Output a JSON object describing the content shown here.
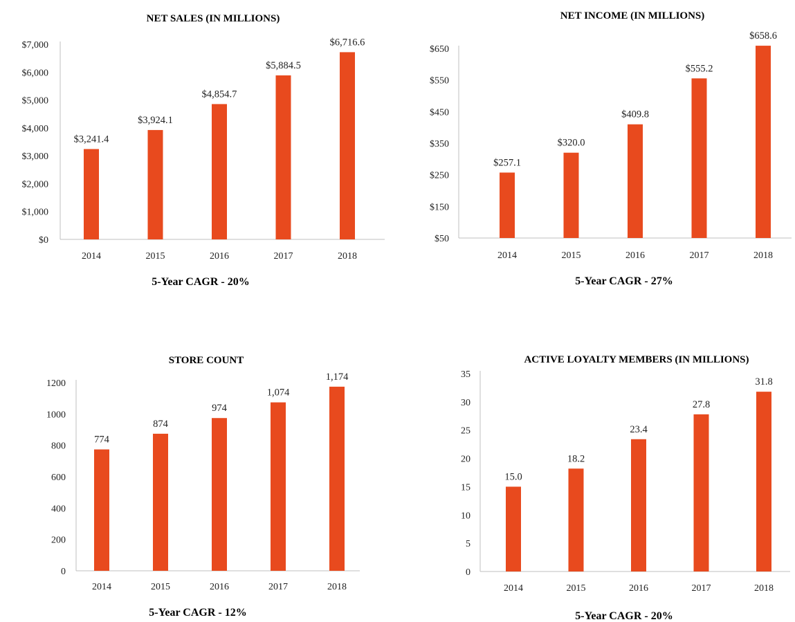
{
  "chart_data": [
    {
      "type": "bar",
      "title": "NET SALES (IN MILLIONS)",
      "caption": "5-Year CAGR - 20%",
      "categories": [
        "2014",
        "2015",
        "2016",
        "2017",
        "2018"
      ],
      "values": [
        3241.4,
        3924.1,
        4854.7,
        5884.5,
        6716.6
      ],
      "value_labels": [
        "$3,241.4",
        "$3,924.1",
        "$4,854.7",
        "$5,884.5",
        "$6,716.6"
      ],
      "yticks": [
        "$0",
        "$1,000",
        "$2,000",
        "$3,000",
        "$4,000",
        "$5,000",
        "$6,000",
        "$7,000"
      ],
      "ylim": [
        0,
        7000
      ],
      "bar_color": "#e84a1e",
      "grid": false
    },
    {
      "type": "bar",
      "title": "NET INCOME (IN MILLIONS)",
      "caption": "5-Year CAGR - 27%",
      "categories": [
        "2014",
        "2015",
        "2016",
        "2017",
        "2018"
      ],
      "values": [
        257.1,
        320.0,
        409.8,
        555.2,
        658.6
      ],
      "value_labels": [
        "$257.1",
        "$320.0",
        "$409.8",
        "$555.2",
        "$658.6"
      ],
      "yticks": [
        "$50",
        "$150",
        "$250",
        "$350",
        "$450",
        "$550",
        "$650"
      ],
      "ylim": [
        50,
        650
      ],
      "bar_color": "#e84a1e",
      "grid": false
    },
    {
      "type": "bar",
      "title": "STORE COUNT",
      "caption": "5-Year CAGR - 12%",
      "categories": [
        "2014",
        "2015",
        "2016",
        "2017",
        "2018"
      ],
      "values": [
        774,
        874,
        974,
        1074,
        1174
      ],
      "value_labels": [
        "774",
        "874",
        "974",
        "1,074",
        "1,174"
      ],
      "yticks": [
        "0",
        "200",
        "400",
        "600",
        "800",
        "1000",
        "1200"
      ],
      "ylim": [
        0,
        1200
      ],
      "bar_color": "#e84a1e",
      "grid": false
    },
    {
      "type": "bar",
      "title": "ACTIVE LOYALTY MEMBERS (IN MILLIONS)",
      "caption": "5-Year CAGR - 20%",
      "categories": [
        "2014",
        "2015",
        "2016",
        "2017",
        "2018"
      ],
      "values": [
        15.0,
        18.2,
        23.4,
        27.8,
        31.8
      ],
      "value_labels": [
        "15.0",
        "18.2",
        "23.4",
        "27.8",
        "31.8"
      ],
      "yticks": [
        "0",
        "5",
        "10",
        "15",
        "20",
        "25",
        "30",
        "35"
      ],
      "ylim": [
        0,
        35
      ],
      "bar_color": "#e84a1e",
      "grid": false
    }
  ]
}
